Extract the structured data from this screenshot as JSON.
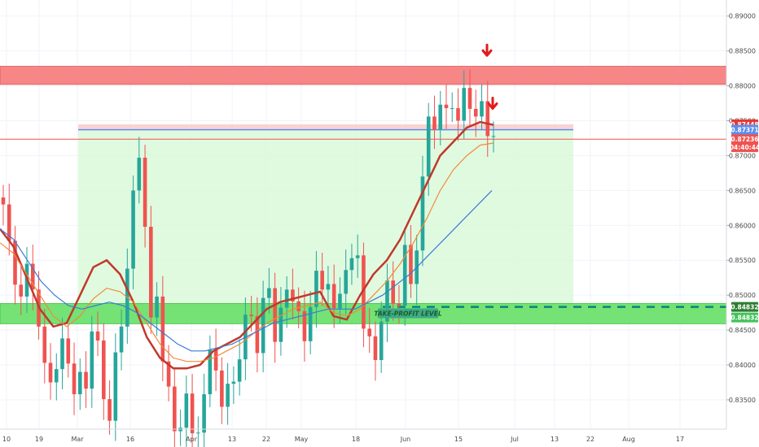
{
  "chart_data": {
    "type": "candlestick",
    "price_axis": {
      "ticks": [
        "0.89000",
        "0.88500",
        "0.88000",
        "0.87500",
        "0.87000",
        "0.86500",
        "0.86000",
        "0.85500",
        "0.85000",
        "0.84500",
        "0.84000",
        "0.83500"
      ],
      "tick_values": [
        0.89,
        0.885,
        0.88,
        0.875,
        0.87,
        0.865,
        0.86,
        0.855,
        0.85,
        0.845,
        0.84,
        0.835
      ],
      "ylim": [
        0.8308,
        0.8923
      ]
    },
    "time_axis": {
      "ticks": [
        "10",
        "19",
        "Mar",
        "16",
        "Apr",
        "13",
        "22",
        "May",
        "18",
        "Jun",
        "15",
        "Jul",
        "13",
        "22",
        "Aug",
        "17"
      ]
    },
    "price_badges": [
      {
        "label": "0.87448",
        "value": 0.87448,
        "color": "#e53935"
      },
      {
        "label": "0.87371",
        "value": 0.87371,
        "color": "#5b8def"
      },
      {
        "label": "0.87236",
        "value": 0.87236,
        "color": "#ef5350"
      },
      {
        "label": "04:40:44",
        "value": 0.8712,
        "color": "#ef5350"
      },
      {
        "label": "0.84832",
        "value": 0.84832,
        "color": "#2e7d32"
      },
      {
        "label": "0.84832",
        "value": 0.8468,
        "color": "#43c25a"
      }
    ],
    "zones": [
      {
        "kind": "resistance",
        "low": 0.8802,
        "high": 0.8828,
        "color": "#f77f7f"
      },
      {
        "kind": "support",
        "low": 0.8459,
        "high": 0.8488,
        "color": "#6ee06e"
      },
      {
        "kind": "position-loss",
        "low": 0.87371,
        "high": 0.87448,
        "color": "#f8c8c8"
      },
      {
        "kind": "position-profit",
        "low": 0.84832,
        "high": 0.87371,
        "color": "#d8f9d8"
      }
    ],
    "horizontal_lines": [
      {
        "value": 0.87236,
        "color": "#ef5350",
        "style": "solid"
      },
      {
        "value": 0.84832,
        "color": "#00897b",
        "style": "dashed"
      }
    ],
    "annotations": [
      {
        "text": "TAKE-PROFIT LEVEL",
        "value": 0.8474,
        "color": "#1b5e20"
      }
    ],
    "series": [
      {
        "kind": "ohlc",
        "bullish_color": "#26a69a",
        "bearish_color": "#ef5350",
        "closes": [
          0.863,
          0.8578,
          0.8515,
          0.8498,
          0.8545,
          0.8508,
          0.8455,
          0.8403,
          0.8375,
          0.8394,
          0.8438,
          0.8402,
          0.8358,
          0.839,
          0.8366,
          0.8448,
          0.8435,
          0.8351,
          0.832,
          0.8418,
          0.8455,
          0.8538,
          0.865,
          0.8697,
          0.8598,
          0.8468,
          0.8498,
          0.8405,
          0.8369,
          0.8305,
          0.831,
          0.8359,
          0.8302,
          0.8303,
          0.8358,
          0.8422,
          0.8392,
          0.834,
          0.8373,
          0.8376,
          0.8408,
          0.8472,
          0.847,
          0.8417,
          0.8496,
          0.851,
          0.8433,
          0.8482,
          0.8508,
          0.8491,
          0.8477,
          0.8434,
          0.8483,
          0.8535,
          0.8508,
          0.8516,
          0.8481,
          0.8502,
          0.8536,
          0.8553,
          0.8557,
          0.8452,
          0.8441,
          0.8407,
          0.8462,
          0.8521,
          0.8488,
          0.8485,
          0.8572,
          0.8516,
          0.8564,
          0.867,
          0.8756,
          0.8737,
          0.8773,
          0.8768,
          0.8768,
          0.875,
          0.8797,
          0.8767,
          0.8756,
          0.8778,
          0.8728,
          0.8728
        ]
      },
      {
        "name": "",
        "color": "#c0392b",
        "values": [
          0.8595,
          0.857,
          0.8525,
          0.848,
          0.8455,
          0.846,
          0.85,
          0.854,
          0.855,
          0.853,
          0.849,
          0.844,
          0.841,
          0.8395,
          0.8395,
          0.84,
          0.842,
          0.843,
          0.844,
          0.846,
          0.848,
          0.849,
          0.8495,
          0.85,
          0.8505,
          0.847,
          0.8465,
          0.85,
          0.853,
          0.855,
          0.858,
          0.862,
          0.866,
          0.87,
          0.872,
          0.874,
          0.8748,
          0.8744
        ]
      },
      {
        "name": "",
        "color": "#f08a3c",
        "values": [
          0.8575,
          0.856,
          0.853,
          0.85,
          0.847,
          0.8455,
          0.847,
          0.8495,
          0.851,
          0.8505,
          0.849,
          0.846,
          0.843,
          0.841,
          0.8405,
          0.8405,
          0.841,
          0.842,
          0.843,
          0.8445,
          0.846,
          0.847,
          0.848,
          0.8485,
          0.849,
          0.8475,
          0.847,
          0.848,
          0.85,
          0.852,
          0.8545,
          0.8575,
          0.861,
          0.865,
          0.868,
          0.87,
          0.8715,
          0.8718
        ]
      },
      {
        "name": "",
        "color": "#3a7bd5",
        "values": [
          0.8595,
          0.858,
          0.855,
          0.852,
          0.85,
          0.8485,
          0.848,
          0.8485,
          0.849,
          0.8485,
          0.8475,
          0.846,
          0.8445,
          0.843,
          0.842,
          0.842,
          0.8425,
          0.843,
          0.844,
          0.845,
          0.846,
          0.8465,
          0.847,
          0.8475,
          0.848,
          0.848,
          0.848,
          0.849,
          0.85,
          0.8515,
          0.853,
          0.855,
          0.857,
          0.859,
          0.861,
          0.863,
          0.865
        ]
      }
    ]
  }
}
